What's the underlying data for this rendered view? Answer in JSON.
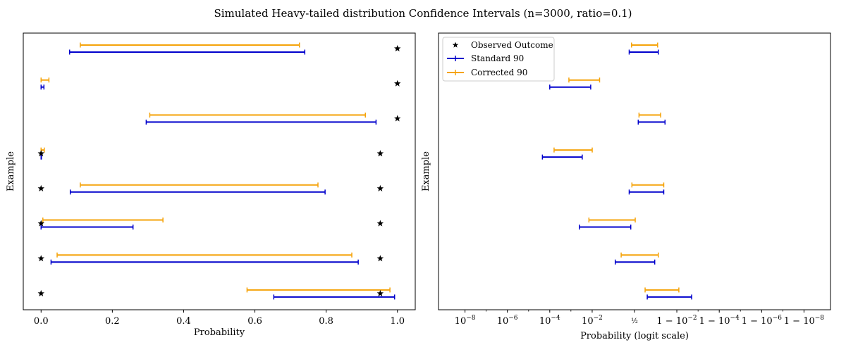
{
  "figure": {
    "suptitle": "Simulated Heavy-tailed distribution Confidence Intervals (n=3000, ratio=0.1)"
  },
  "colors": {
    "standard": "#0000cc",
    "corrected": "#f5a30a",
    "observed": "#000000",
    "axes": "#000000"
  },
  "chart_data": [
    {
      "type": "errorbar-interval",
      "scale": "linear",
      "xlabel": "Probability",
      "ylabel": "Example",
      "xlim": [
        -0.05,
        1.05
      ],
      "xticks": [
        0.0,
        0.2,
        0.4,
        0.6,
        0.8,
        1.0
      ],
      "xtick_labels": [
        "0.0",
        "0.2",
        "0.4",
        "0.6",
        "0.8",
        "1.0"
      ],
      "yticks_visible": false,
      "legend": false,
      "examples": [
        {
          "observed": 1,
          "standard": [
            0.08,
            0.74
          ],
          "corrected": [
            0.11,
            0.725
          ]
        },
        {
          "observed": 1,
          "standard": [
            0.0,
            0.008
          ],
          "corrected": [
            0.0,
            0.022
          ]
        },
        {
          "observed": 1,
          "standard": [
            0.295,
            0.94
          ],
          "corrected": [
            0.305,
            0.91
          ]
        },
        {
          "observed": 0,
          "standard": [
            0.0,
            0.001
          ],
          "corrected": [
            0.0,
            0.009
          ]
        },
        {
          "observed": 0,
          "standard": [
            0.082,
            0.797
          ],
          "corrected": [
            0.11,
            0.777
          ]
        },
        {
          "observed": 0,
          "standard": [
            0.0,
            0.258
          ],
          "corrected": [
            0.005,
            0.342
          ]
        },
        {
          "observed": 0,
          "standard": [
            0.028,
            0.89
          ],
          "corrected": [
            0.045,
            0.872
          ]
        },
        {
          "observed": 0,
          "standard": [
            0.653,
            0.992
          ],
          "corrected": [
            0.578,
            0.979
          ]
        }
      ]
    },
    {
      "type": "errorbar-interval",
      "scale": "logit",
      "xlabel": "Probability (logit scale)",
      "ylabel": "Example",
      "xlim": [
        -21.3,
        21.3
      ],
      "xticks": [
        -18.42,
        -13.82,
        -9.21,
        -4.6,
        0.0,
        4.6,
        9.21,
        13.82,
        18.42
      ],
      "xtick_labels": [
        "10^-8",
        "10^-6",
        "10^-4",
        "10^-2",
        "1/2",
        "1 − 10^-2",
        "1 − 10^-4",
        "1 − 10^-6",
        "1 − 10^-8"
      ],
      "yticks_visible": false,
      "legend": {
        "position": "upper left",
        "entries": [
          "Observed Outcome",
          "Standard 90",
          "Corrected 90"
        ]
      },
      "examples": [
        {
          "observed": 1,
          "standard": [
            0.36,
            0.93
          ],
          "corrected": [
            0.42,
            0.925
          ]
        },
        {
          "observed": 1,
          "standard": [
            0.0001,
            0.0085
          ],
          "corrected": [
            0.0008,
            0.022
          ]
        },
        {
          "observed": 1,
          "standard": [
            0.6,
            0.965
          ],
          "corrected": [
            0.62,
            0.945
          ]
        },
        {
          "observed": 0,
          "standard": [
            4.5e-05,
            0.0034
          ],
          "corrected": [
            0.00016,
            0.01
          ]
        },
        {
          "observed": 0,
          "standard": [
            0.36,
            0.96
          ],
          "corrected": [
            0.43,
            0.96
          ]
        },
        {
          "observed": 0,
          "standard": [
            0.0025,
            0.4
          ],
          "corrected": [
            0.007,
            0.52
          ]
        },
        {
          "observed": 0,
          "standard": [
            0.11,
            0.9
          ],
          "corrected": [
            0.19,
            0.93
          ]
        },
        {
          "observed": 0,
          "standard": [
            0.8,
            0.998
          ],
          "corrected": [
            0.76,
            0.992
          ]
        }
      ]
    }
  ]
}
